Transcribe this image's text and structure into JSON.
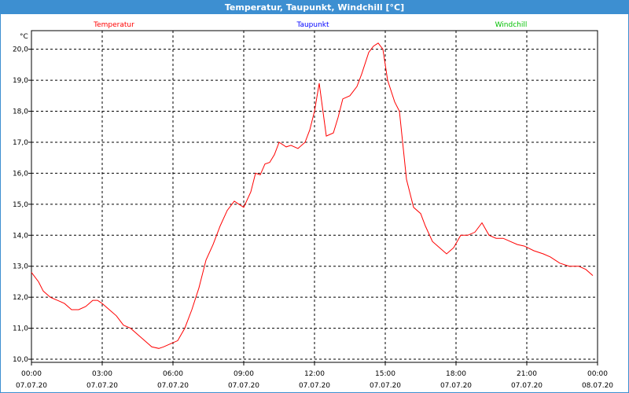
{
  "window": {
    "title": "Temperatur, Taupunkt, Windchill [°C]"
  },
  "chart_data": {
    "type": "line",
    "title": "Temperatur, Taupunkt, Windchill [°C]",
    "ylabel": "°C",
    "ylim": [
      9.9,
      20.6
    ],
    "xlim": [
      0,
      24
    ],
    "grid": true,
    "legend_placement": "top",
    "yticks": [
      10.0,
      11.0,
      12.0,
      13.0,
      14.0,
      15.0,
      16.0,
      17.0,
      18.0,
      19.0,
      20.0
    ],
    "ytick_labels": [
      "10,0",
      "11,0",
      "12,0",
      "13,0",
      "14,0",
      "15,0",
      "16,0",
      "17,0",
      "18,0",
      "19,0",
      "20,0"
    ],
    "xticks": [
      {
        "x": 0,
        "time": "00:00",
        "date": "07.07.20"
      },
      {
        "x": 3,
        "time": "03:00",
        "date": "07.07.20"
      },
      {
        "x": 6,
        "time": "06:00",
        "date": "07.07.20"
      },
      {
        "x": 9,
        "time": "09:00",
        "date": "07.07.20"
      },
      {
        "x": 12,
        "time": "12:00",
        "date": "07.07.20"
      },
      {
        "x": 15,
        "time": "15:00",
        "date": "07.07.20"
      },
      {
        "x": 18,
        "time": "18:00",
        "date": "07.07.20"
      },
      {
        "x": 21,
        "time": "21:00",
        "date": "07.07.20"
      },
      {
        "x": 24,
        "time": "00:00",
        "date": "08.07.20"
      }
    ],
    "legend": [
      {
        "name": "Temperatur",
        "color": "#ff0000"
      },
      {
        "name": "Taupunkt",
        "color": "#0000ff"
      },
      {
        "name": "Windchill",
        "color": "#00c000"
      }
    ],
    "series": [
      {
        "name": "Temperatur",
        "color": "#ff0000",
        "x": [
          0,
          0.3,
          0.5,
          0.8,
          1.1,
          1.4,
          1.7,
          2.0,
          2.3,
          2.6,
          2.8,
          3.0,
          3.3,
          3.6,
          3.9,
          4.2,
          4.5,
          4.8,
          5.1,
          5.4,
          5.6,
          5.9,
          6.2,
          6.5,
          6.8,
          7.1,
          7.4,
          7.7,
          8.0,
          8.3,
          8.6,
          8.8,
          9.0,
          9.3,
          9.5,
          9.7,
          9.9,
          10.1,
          10.3,
          10.5,
          10.8,
          11.0,
          11.3,
          11.6,
          11.8,
          12.0,
          12.2,
          12.5,
          12.8,
          13.0,
          13.2,
          13.5,
          13.8,
          14.0,
          14.3,
          14.5,
          14.7,
          14.9,
          15.1,
          15.4,
          15.6,
          15.9,
          16.2,
          16.5,
          16.7,
          17.0,
          17.3,
          17.6,
          17.9,
          18.2,
          18.5,
          18.8,
          19.1,
          19.4,
          19.7,
          20.0,
          20.3,
          20.6,
          20.9,
          21.3,
          21.7,
          22.0,
          22.4,
          22.8,
          23.2,
          23.5,
          23.8
        ],
        "values": [
          12.8,
          12.5,
          12.2,
          12.0,
          11.9,
          11.8,
          11.6,
          11.6,
          11.7,
          11.9,
          11.9,
          11.8,
          11.6,
          11.4,
          11.1,
          11.0,
          10.8,
          10.6,
          10.4,
          10.35,
          10.4,
          10.5,
          10.6,
          11.0,
          11.6,
          12.3,
          13.2,
          13.7,
          14.3,
          14.8,
          15.1,
          15.0,
          14.9,
          15.4,
          16.0,
          15.95,
          16.3,
          16.35,
          16.6,
          17.0,
          16.85,
          16.9,
          16.8,
          17.0,
          17.4,
          18.0,
          18.9,
          17.2,
          17.3,
          17.8,
          18.4,
          18.5,
          18.8,
          19.2,
          19.9,
          20.1,
          20.2,
          20.0,
          19.0,
          18.3,
          18.0,
          15.8,
          14.9,
          14.7,
          14.3,
          13.8,
          13.6,
          13.4,
          13.6,
          14.0,
          14.0,
          14.1,
          14.4,
          14.0,
          13.9,
          13.9,
          13.8,
          13.7,
          13.65,
          13.5,
          13.4,
          13.3,
          13.1,
          13.0,
          13.0,
          12.9,
          12.7
        ]
      }
    ]
  }
}
